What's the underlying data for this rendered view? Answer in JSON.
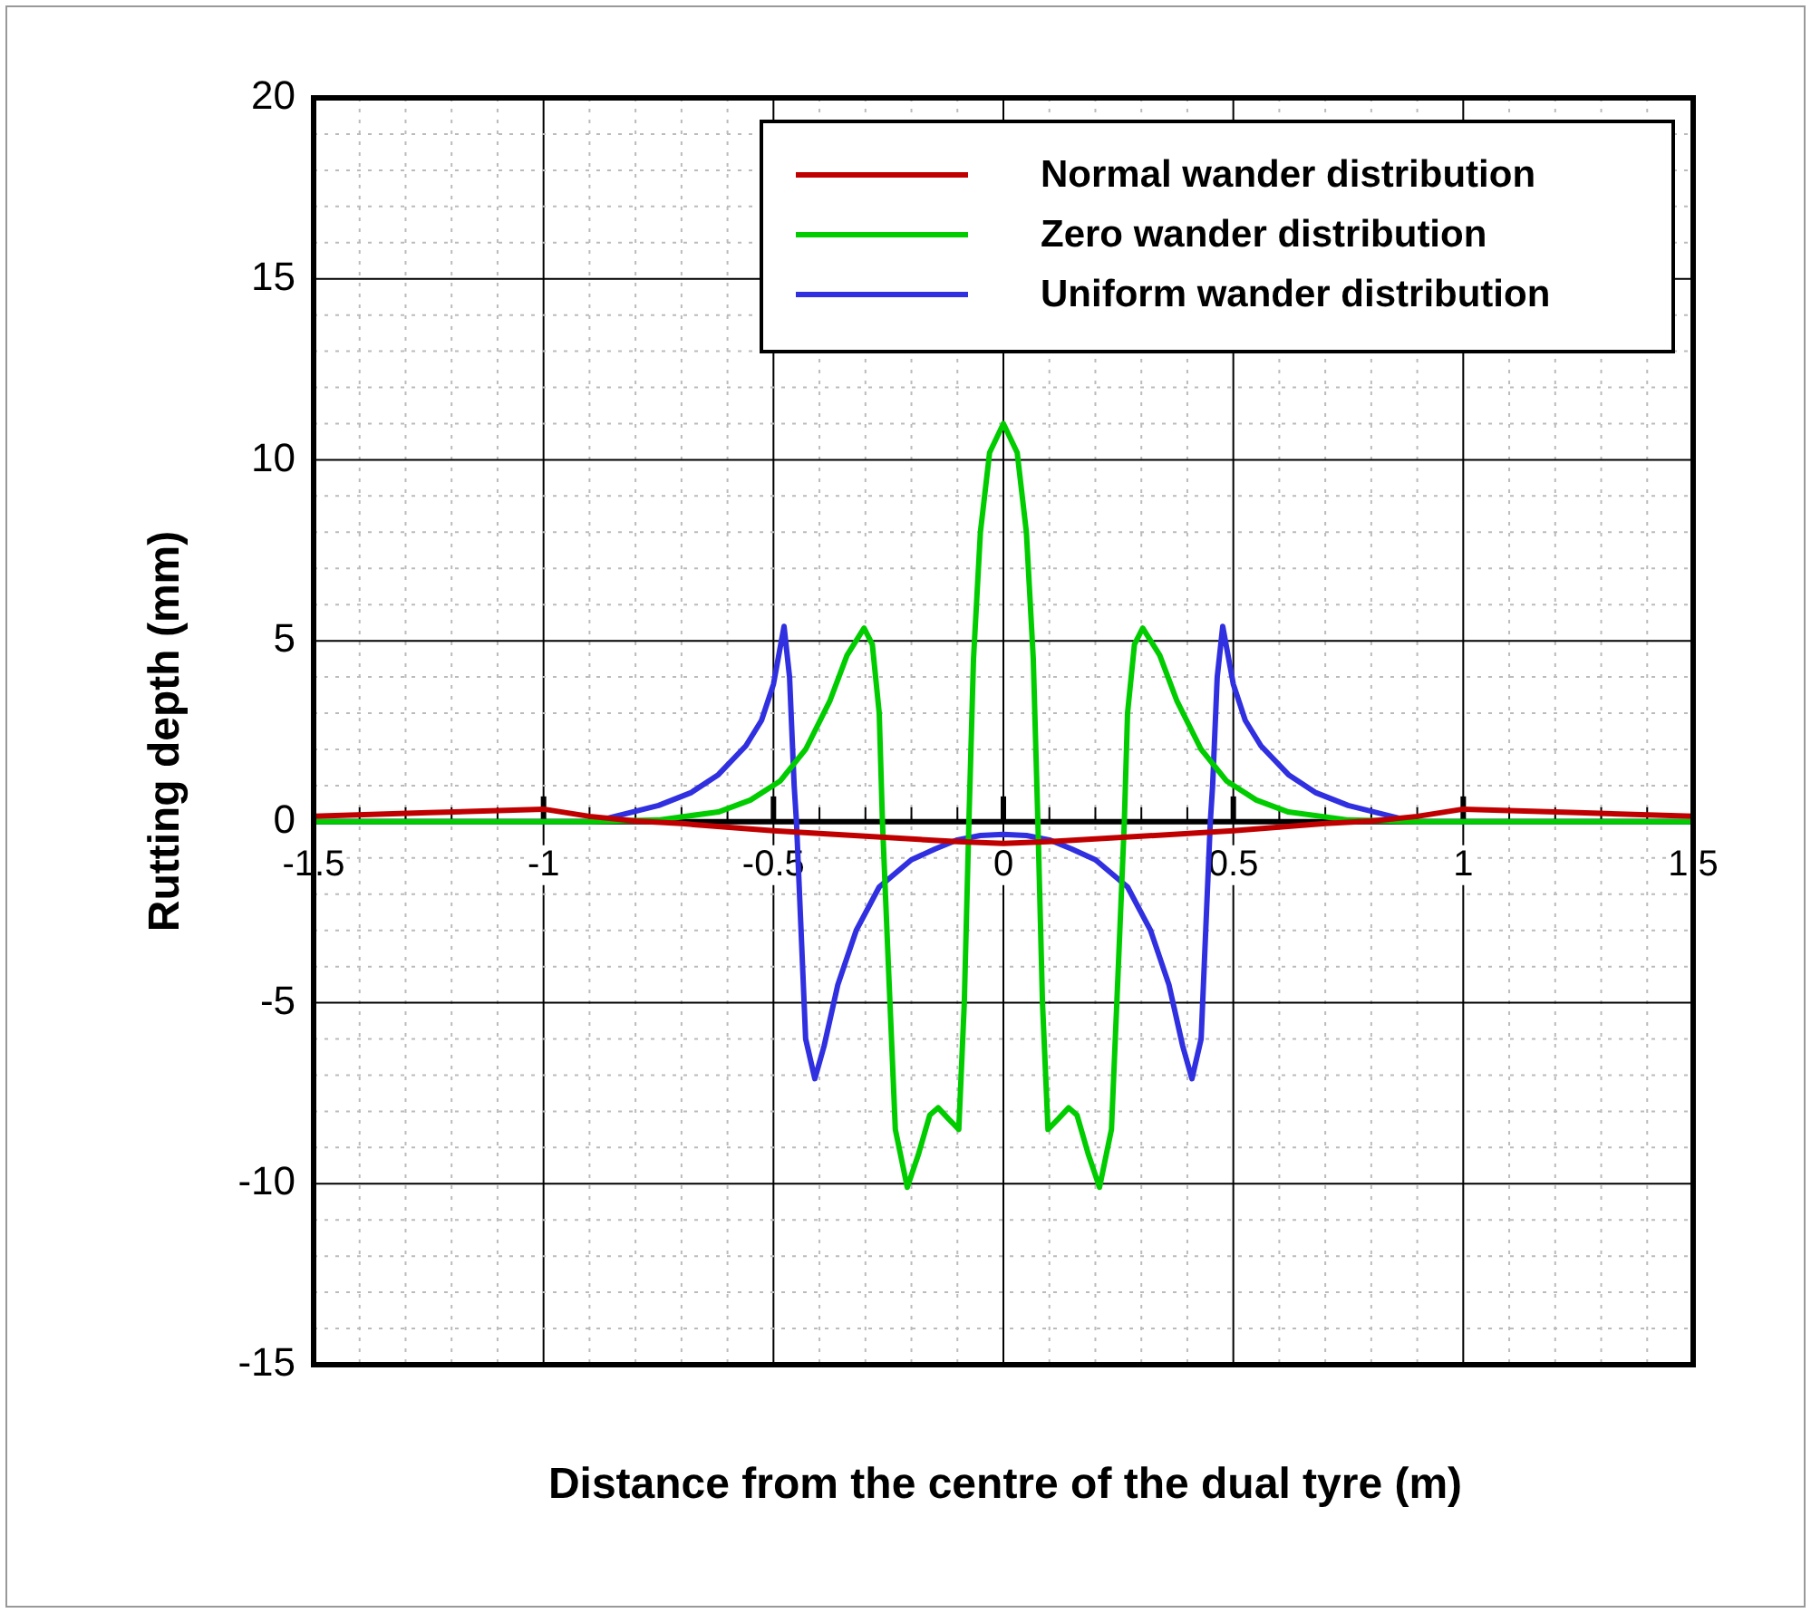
{
  "chart_data": {
    "type": "line",
    "xlabel": "Distance from the centre of the dual tyre (m)",
    "ylabel": "Rutting depth (mm)",
    "xlim": [
      -1.5,
      1.5
    ],
    "ylim": [
      -15,
      20
    ],
    "xticks": [
      -1.5,
      {
        "value": -1.4,
        "label": null
      },
      {
        "value": -1.3,
        "label": null
      },
      {
        "value": -1.2,
        "label": null
      },
      {
        "value": -1.1,
        "label": null
      },
      -1,
      {
        "value": -0.9,
        "label": null
      },
      {
        "value": -0.8,
        "label": null
      },
      {
        "value": -0.7,
        "label": null
      },
      {
        "value": -0.6,
        "label": null
      },
      -0.5,
      {
        "value": -0.4,
        "label": null
      },
      {
        "value": -0.3,
        "label": null
      },
      {
        "value": -0.2,
        "label": null
      },
      {
        "value": -0.1,
        "label": null
      },
      0,
      {
        "value": 0.1,
        "label": null
      },
      {
        "value": 0.2,
        "label": null
      },
      {
        "value": 0.3,
        "label": null
      },
      {
        "value": 0.4,
        "label": null
      },
      0.5,
      {
        "value": 0.6,
        "label": null
      },
      {
        "value": 0.7,
        "label": null
      },
      {
        "value": 0.8,
        "label": null
      },
      {
        "value": 0.9,
        "label": null
      },
      1,
      {
        "value": 1.1,
        "label": null
      },
      {
        "value": 1.2,
        "label": null
      },
      {
        "value": 1.3,
        "label": null
      },
      {
        "value": 1.4,
        "label": null
      },
      1.5
    ],
    "yticks": [
      -15,
      {
        "value": -14,
        "label": null
      },
      {
        "value": -13,
        "label": null
      },
      {
        "value": -12,
        "label": null
      },
      {
        "value": -11,
        "label": null
      },
      -10,
      {
        "value": -9,
        "label": null
      },
      {
        "value": -8,
        "label": null
      },
      {
        "value": -7,
        "label": null
      },
      {
        "value": -6,
        "label": null
      },
      -5,
      {
        "value": -4,
        "label": null
      },
      {
        "value": -3,
        "label": null
      },
      {
        "value": -2,
        "label": null
      },
      {
        "value": -1,
        "label": null
      },
      0,
      {
        "value": 1,
        "label": null
      },
      {
        "value": 2,
        "label": null
      },
      {
        "value": 3,
        "label": null
      },
      {
        "value": 4,
        "label": null
      },
      5,
      {
        "value": 6,
        "label": null
      },
      {
        "value": 7,
        "label": null
      },
      {
        "value": 8,
        "label": null
      },
      {
        "value": 9,
        "label": null
      },
      10,
      {
        "value": 11,
        "label": null
      },
      {
        "value": 12,
        "label": null
      },
      {
        "value": 13,
        "label": null
      },
      {
        "value": 14,
        "label": null
      },
      15,
      {
        "value": 16,
        "label": null
      },
      {
        "value": 17,
        "label": null
      },
      {
        "value": 18,
        "label": null
      },
      {
        "value": 19,
        "label": null
      },
      20
    ],
    "grid": true,
    "legend": "top right",
    "marker": "none",
    "line_style": "solid",
    "series": [
      {
        "name": "Normal wander distribution",
        "color": "#c00000",
        "x": [
          -1.5,
          -1.25,
          -1,
          -0.9,
          -0.8,
          -0.7,
          -0.5,
          -0.3,
          -0.1,
          0,
          0.1,
          0.3,
          0.5,
          0.7,
          0.8,
          0.9,
          1,
          1.25,
          1.5
        ],
        "values": [
          0.15,
          0.25,
          0.35,
          0.15,
          0.02,
          -0.05,
          -0.25,
          -0.4,
          -0.55,
          -0.6,
          -0.55,
          -0.4,
          -0.25,
          -0.05,
          0.02,
          0.15,
          0.35,
          0.25,
          0.15
        ]
      },
      {
        "name": "Zero wander distribution",
        "color": "#00cc00",
        "x": [
          -1.5,
          -0.9,
          -0.75,
          -0.62,
          -0.55,
          -0.485,
          -0.43,
          -0.377,
          -0.34,
          -0.303,
          -0.285,
          -0.27,
          -0.263,
          -0.25,
          -0.235,
          -0.209,
          -0.185,
          -0.16,
          -0.142,
          -0.12,
          -0.097,
          -0.085,
          -0.075,
          -0.065,
          -0.05,
          -0.03,
          0,
          0.03,
          0.05,
          0.065,
          0.075,
          0.085,
          0.097,
          0.12,
          0.142,
          0.16,
          0.185,
          0.209,
          0.235,
          0.25,
          0.263,
          0.27,
          0.285,
          0.303,
          0.34,
          0.377,
          0.43,
          0.485,
          0.55,
          0.62,
          0.75,
          0.9,
          1.5
        ],
        "values": [
          0,
          0,
          0.05,
          0.27,
          0.6,
          1.13,
          2,
          3.35,
          4.6,
          5.35,
          4.9,
          3,
          0,
          -4,
          -8.5,
          -10.1,
          -9.2,
          -8.1,
          -7.9,
          -8.2,
          -8.5,
          -5,
          0,
          4.5,
          8,
          10.2,
          11,
          10.2,
          8,
          4.5,
          0,
          -5,
          -8.5,
          -8.2,
          -7.9,
          -8.1,
          -9.2,
          -10.1,
          -8.5,
          -4,
          0,
          3,
          4.9,
          5.35,
          4.6,
          3.35,
          2,
          1.13,
          0.6,
          0.27,
          0.05,
          0,
          0
        ]
      },
      {
        "name": "Uniform wander distribution",
        "color": "#3030e0",
        "x": [
          -1.5,
          -0.9,
          -0.86,
          -0.75,
          -0.68,
          -0.62,
          -0.56,
          -0.526,
          -0.5,
          -0.477,
          -0.465,
          -0.455,
          -0.45,
          -0.44,
          -0.43,
          -0.41,
          -0.39,
          -0.36,
          -0.32,
          -0.27,
          -0.2,
          -0.148,
          -0.1,
          -0.05,
          0,
          0.05,
          0.1,
          0.148,
          0.2,
          0.27,
          0.32,
          0.36,
          0.39,
          0.41,
          0.43,
          0.44,
          0.45,
          0.455,
          0.465,
          0.477,
          0.5,
          0.526,
          0.56,
          0.62,
          0.68,
          0.75,
          0.86,
          0.9,
          1.5
        ],
        "values": [
          0,
          0,
          0.1,
          0.45,
          0.8,
          1.3,
          2.1,
          2.8,
          3.8,
          5.4,
          4,
          1,
          0,
          -3,
          -6,
          -7.1,
          -6.2,
          -4.5,
          -3,
          -1.8,
          -1.05,
          -0.75,
          -0.5,
          -0.38,
          -0.35,
          -0.38,
          -0.5,
          -0.75,
          -1.05,
          -1.8,
          -3,
          -4.5,
          -6.2,
          -7.1,
          -6,
          -3,
          0,
          1,
          4,
          5.4,
          3.8,
          2.8,
          2.1,
          1.3,
          0.8,
          0.45,
          0.1,
          0,
          0
        ]
      }
    ]
  }
}
